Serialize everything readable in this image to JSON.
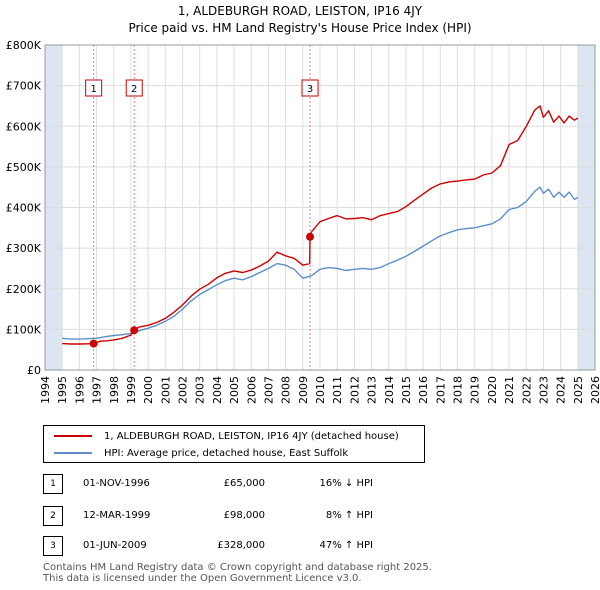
{
  "title_line1": "1, ALDEBURGH ROAD, LEISTON, IP16 4JY",
  "title_line2": "Price paid vs. HM Land Registry's House Price Index (HPI)",
  "chart_data": {
    "type": "line",
    "xlim": [
      1994,
      2026
    ],
    "ylim": [
      0,
      800000
    ],
    "x_ticks": [
      1994,
      1995,
      1996,
      1997,
      1998,
      1999,
      2000,
      2001,
      2002,
      2003,
      2004,
      2005,
      2006,
      2007,
      2008,
      2009,
      2010,
      2011,
      2012,
      2013,
      2014,
      2015,
      2016,
      2017,
      2018,
      2019,
      2020,
      2021,
      2022,
      2023,
      2024,
      2025,
      2026
    ],
    "y_ticks": [
      0,
      100000,
      200000,
      300000,
      400000,
      500000,
      600000,
      700000,
      800000
    ],
    "y_tick_labels": [
      "£0",
      "£100K",
      "£200K",
      "£300K",
      "£400K",
      "£500K",
      "£600K",
      "£700K",
      "£800K"
    ],
    "colors": {
      "property": "#cc0000",
      "hpi": "#5b8fc9",
      "shade": "#dce6f2",
      "marker": "#cc0000"
    },
    "series": [
      {
        "name": "1, ALDEBURGH ROAD, LEISTON, IP16 4JY (detached house)",
        "color": "#cc0000",
        "x": [
          1995.0,
          1995.5,
          1996.0,
          1996.5,
          1996.83,
          1997.2,
          1997.6,
          1998.0,
          1998.5,
          1999.0,
          1999.19,
          1999.5,
          2000.0,
          2000.5,
          2001.0,
          2001.5,
          2002.0,
          2002.5,
          2003.0,
          2003.5,
          2004.0,
          2004.5,
          2005.0,
          2005.5,
          2006.0,
          2006.5,
          2007.0,
          2007.5,
          2008.0,
          2008.5,
          2009.0,
          2009.4,
          2009.42,
          2009.5,
          2010.0,
          2010.5,
          2011.0,
          2011.5,
          2012.0,
          2012.5,
          2013.0,
          2013.5,
          2014.0,
          2014.5,
          2015.0,
          2015.5,
          2016.0,
          2016.5,
          2017.0,
          2017.5,
          2018.0,
          2018.5,
          2019.0,
          2019.5,
          2020.0,
          2020.5,
          2021.0,
          2021.5,
          2022.0,
          2022.5,
          2022.8,
          2023.0,
          2023.3,
          2023.6,
          2023.9,
          2024.2,
          2024.5,
          2024.8,
          2025.0
        ],
        "y": [
          65000,
          64000,
          64000,
          64500,
          65000,
          71000,
          72000,
          74000,
          78000,
          86000,
          98000,
          106000,
          110000,
          117000,
          127000,
          142000,
          160000,
          182000,
          199000,
          211000,
          227000,
          238000,
          244000,
          240000,
          246000,
          256000,
          268000,
          290000,
          281000,
          275000,
          258000,
          262000,
          328000,
          340000,
          365000,
          373000,
          380000,
          372000,
          373000,
          375000,
          370000,
          380000,
          385000,
          390000,
          402000,
          418000,
          433000,
          448000,
          458000,
          463000,
          465000,
          468000,
          470000,
          480000,
          485000,
          503000,
          555000,
          565000,
          600000,
          640000,
          650000,
          622000,
          638000,
          610000,
          625000,
          608000,
          625000,
          615000,
          620000
        ]
      },
      {
        "name": "HPI: Average price, detached house, East Suffolk",
        "color": "#5b8fc9",
        "x": [
          1995.0,
          1995.5,
          1996.0,
          1996.5,
          1997.0,
          1997.5,
          1998.0,
          1998.5,
          1999.0,
          1999.5,
          2000.0,
          2000.5,
          2001.0,
          2001.5,
          2002.0,
          2002.5,
          2003.0,
          2003.5,
          2004.0,
          2004.5,
          2005.0,
          2005.5,
          2006.0,
          2006.5,
          2007.0,
          2007.5,
          2008.0,
          2008.5,
          2009.0,
          2009.5,
          2010.0,
          2010.5,
          2011.0,
          2011.5,
          2012.0,
          2012.5,
          2013.0,
          2013.5,
          2014.0,
          2014.5,
          2015.0,
          2015.5,
          2016.0,
          2016.5,
          2017.0,
          2017.5,
          2018.0,
          2018.5,
          2019.0,
          2019.5,
          2020.0,
          2020.5,
          2021.0,
          2021.5,
          2022.0,
          2022.5,
          2022.8,
          2023.0,
          2023.3,
          2023.6,
          2023.9,
          2024.2,
          2024.5,
          2024.8,
          2025.0
        ],
        "y": [
          78000,
          76000,
          76000,
          77000,
          78000,
          82000,
          85000,
          87000,
          90000,
          97000,
          103000,
          110000,
          120000,
          132000,
          150000,
          170000,
          186000,
          198000,
          210000,
          220000,
          226000,
          222000,
          230000,
          240000,
          250000,
          262000,
          258000,
          248000,
          226000,
          232000,
          248000,
          252000,
          250000,
          245000,
          248000,
          250000,
          248000,
          252000,
          262000,
          270000,
          280000,
          292000,
          305000,
          318000,
          330000,
          338000,
          345000,
          348000,
          350000,
          355000,
          360000,
          372000,
          395000,
          400000,
          415000,
          440000,
          450000,
          435000,
          445000,
          425000,
          438000,
          425000,
          438000,
          420000,
          425000
        ]
      }
    ],
    "purchases": [
      {
        "label": "1",
        "x": 1996.83,
        "y": 65000,
        "date": "01-NOV-1996",
        "price": "£65,000",
        "hpi": "16% ↓ HPI"
      },
      {
        "label": "2",
        "x": 1999.19,
        "y": 98000,
        "date": "12-MAR-1999",
        "price": "£98,000",
        "hpi": "8% ↑ HPI"
      },
      {
        "label": "3",
        "x": 2009.42,
        "y": 328000,
        "date": "01-JUN-2009",
        "price": "£328,000",
        "hpi": "47% ↑ HPI"
      }
    ],
    "shaded_ranges": [
      [
        1994,
        1995
      ],
      [
        2025,
        2026
      ]
    ]
  },
  "legend": {
    "property": "1, ALDEBURGH ROAD, LEISTON, IP16 4JY (detached house)",
    "hpi": "HPI: Average price, detached house, East Suffolk"
  },
  "footer_line1": "Contains HM Land Registry data © Crown copyright and database right 2025.",
  "footer_line2": "This data is licensed under the Open Government Licence v3.0."
}
